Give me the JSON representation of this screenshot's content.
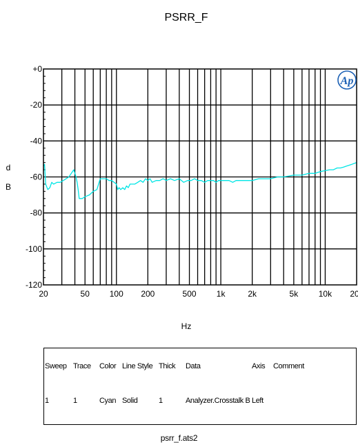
{
  "chart_data": {
    "type": "line",
    "title": "PSRR_F",
    "xlabel": "Hz",
    "ylabel": "dB",
    "x_scale": "log",
    "xlim": [
      20,
      20000
    ],
    "ylim": [
      -120,
      0
    ],
    "grid": true,
    "x_ticks": [
      {
        "value": 20,
        "label": "20"
      },
      {
        "value": 50,
        "label": "50"
      },
      {
        "value": 100,
        "label": "100"
      },
      {
        "value": 200,
        "label": "200"
      },
      {
        "value": 500,
        "label": "500"
      },
      {
        "value": 1000,
        "label": "1k"
      },
      {
        "value": 2000,
        "label": "2k"
      },
      {
        "value": 5000,
        "label": "5k"
      },
      {
        "value": 10000,
        "label": "10k"
      },
      {
        "value": 20000,
        "label": "20k"
      }
    ],
    "y_ticks": [
      {
        "value": 0,
        "label": "+0"
      },
      {
        "value": -20,
        "label": "-20"
      },
      {
        "value": -40,
        "label": "-40"
      },
      {
        "value": -60,
        "label": "-60"
      },
      {
        "value": -80,
        "label": "-80"
      },
      {
        "value": -100,
        "label": "-100"
      },
      {
        "value": -120,
        "label": "-120"
      }
    ],
    "logo": "Ap",
    "series": [
      {
        "color": "#00e5e5",
        "x": [
          20,
          20.5,
          21,
          22,
          23,
          24,
          25,
          27,
          29,
          31,
          33,
          35,
          37,
          39,
          40,
          41,
          42,
          43,
          44,
          45,
          47,
          50,
          55,
          60,
          65,
          70,
          75,
          80,
          85,
          90,
          95,
          100,
          103,
          106,
          110,
          115,
          120,
          125,
          130,
          135,
          140,
          150,
          160,
          170,
          180,
          190,
          200,
          210,
          220,
          240,
          260,
          280,
          300,
          330,
          360,
          400,
          440,
          480,
          520,
          560,
          600,
          650,
          700,
          750,
          800,
          850,
          900,
          950,
          1000,
          1100,
          1200,
          1300,
          1400,
          1500,
          1700,
          2000,
          2300,
          2600,
          3000,
          3500,
          4000,
          5000,
          6000,
          7000,
          8000,
          9000,
          10000,
          11000,
          12000,
          13000,
          14000,
          15000,
          16000,
          17000,
          18000,
          19000,
          20000
        ],
        "values": [
          -54,
          -53,
          -64,
          -67,
          -66,
          -63,
          -64,
          -63,
          -63,
          -62,
          -61,
          -60,
          -58,
          -56,
          -58,
          -60,
          -63,
          -67,
          -72,
          -72,
          -72,
          -71,
          -70,
          -68,
          -67,
          -61,
          -61,
          -61,
          -62,
          -62,
          -63,
          -64,
          -67,
          -66,
          -67,
          -66,
          -67,
          -65,
          -66,
          -64,
          -64,
          -64,
          -63,
          -62,
          -63,
          -61,
          -62,
          -61,
          -63,
          -62,
          -62,
          -61,
          -62,
          -61,
          -62,
          -61,
          -63,
          -62,
          -62,
          -61,
          -62,
          -62,
          -63,
          -62,
          -62,
          -62,
          -63,
          -62,
          -62,
          -62,
          -62,
          -63,
          -62,
          -62,
          -62,
          -62,
          -61,
          -61,
          -61,
          -60,
          -60,
          -59,
          -59,
          -58,
          -58,
          -57,
          -56.5,
          -56,
          -56,
          -55,
          -55,
          -54.5,
          -54,
          -53.5,
          -53,
          -52.5,
          -52
        ]
      }
    ]
  },
  "legend_table": {
    "headers": [
      "Sweep",
      "Trace",
      "Color",
      "Line Style",
      "Thick",
      "Data",
      "Axis",
      "Comment"
    ],
    "rows": [
      [
        "1",
        "1",
        "Cyan",
        "Solid",
        "1",
        "Analyzer.Crosstalk B",
        "Left",
        ""
      ]
    ]
  },
  "footer": "psrr_f.ats2"
}
